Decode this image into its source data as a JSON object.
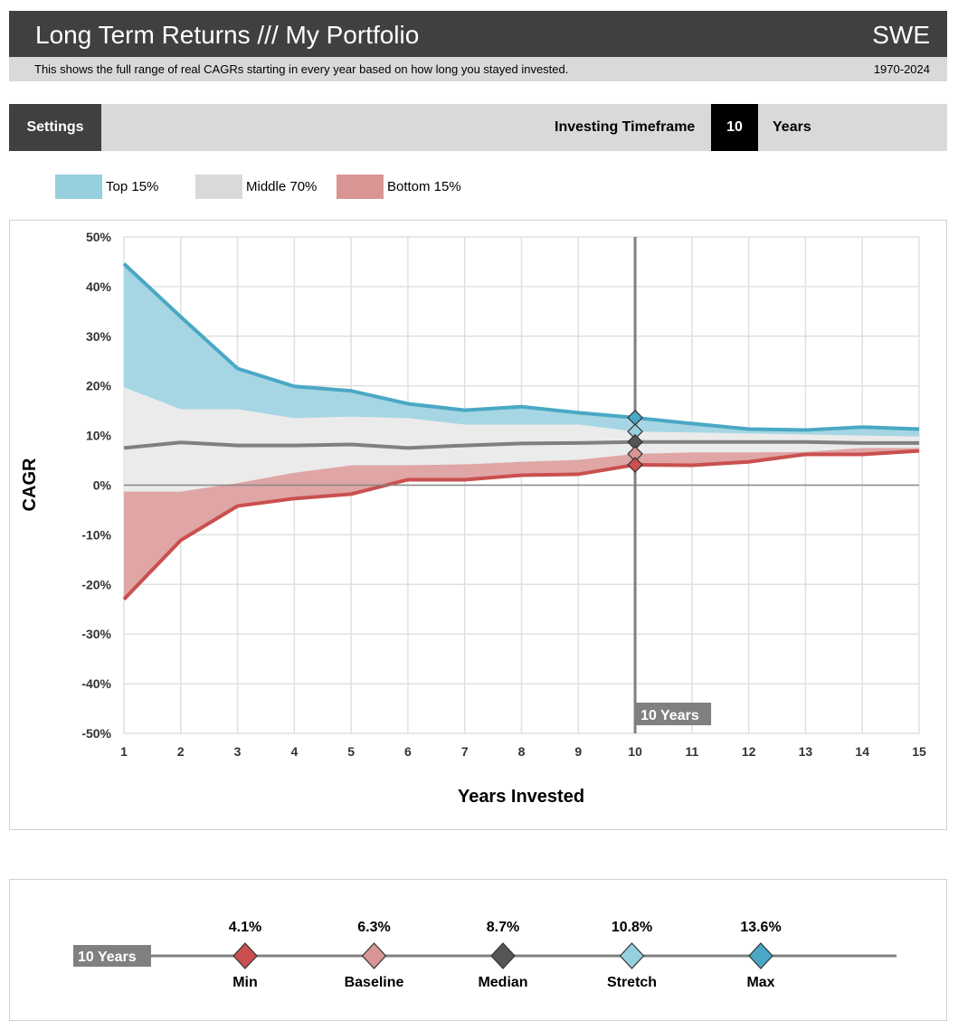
{
  "header": {
    "title": "Long Term Returns /// My Portfolio",
    "region": "SWE",
    "subtitle": "This shows the full range of real CAGRs starting in every year based on how long you stayed invested.",
    "date_range": "1970-2024"
  },
  "settings": {
    "button": "Settings",
    "timeframe_label": "Investing Timeframe",
    "timeframe_value": "10",
    "timeframe_unit": "Years"
  },
  "legend": [
    {
      "label": "Top 15%",
      "color": "#96cfdd"
    },
    {
      "label": "Middle 70%",
      "color": "#d9d9d9"
    },
    {
      "label": "Bottom 15%",
      "color": "#d99594"
    }
  ],
  "chart_data": {
    "type": "area",
    "xlabel": "Years Invested",
    "ylabel": "CAGR",
    "x": [
      1,
      2,
      3,
      4,
      5,
      6,
      7,
      8,
      9,
      10,
      11,
      12,
      13,
      14,
      15
    ],
    "ylim": [
      -50,
      50
    ],
    "yticks": [
      "50%",
      "40%",
      "30%",
      "20%",
      "10%",
      "0%",
      "-10%",
      "-20%",
      "-30%",
      "-40%",
      "-50%"
    ],
    "ytick_values": [
      50,
      40,
      30,
      20,
      10,
      0,
      -10,
      -20,
      -30,
      -40,
      -50
    ],
    "series": [
      {
        "name": "Max",
        "values": [
          44.6,
          33.9,
          23.5,
          19.9,
          19.0,
          16.4,
          15.1,
          15.8,
          14.6,
          13.6,
          12.4,
          11.3,
          11.1,
          11.7,
          11.3
        ],
        "color": "#4aa8c4"
      },
      {
        "name": "Stretch",
        "values": [
          19.7,
          15.3,
          15.3,
          13.5,
          13.8,
          13.5,
          12.2,
          12.2,
          12.2,
          10.8,
          10.6,
          10.4,
          10.2,
          10.0,
          9.8
        ],
        "color": "#96cfdd"
      },
      {
        "name": "Median",
        "values": [
          7.5,
          8.6,
          8.0,
          8.0,
          8.2,
          7.5,
          8.0,
          8.4,
          8.5,
          8.7,
          8.7,
          8.7,
          8.7,
          8.5,
          8.5
        ],
        "color": "#777777"
      },
      {
        "name": "Baseline",
        "values": [
          -1.3,
          -1.3,
          0.4,
          2.5,
          4.0,
          4.0,
          4.2,
          4.7,
          5.1,
          6.3,
          6.6,
          6.6,
          6.7,
          7.5,
          7.5
        ],
        "color": "#d99594"
      },
      {
        "name": "Min",
        "values": [
          -23.0,
          -11.1,
          -4.2,
          -2.7,
          -1.8,
          1.1,
          1.1,
          2.0,
          2.2,
          4.1,
          4.0,
          4.7,
          6.2,
          6.2,
          6.9
        ],
        "color": "#c9504f"
      }
    ],
    "selected_x": 10,
    "selected_label": "10 Years",
    "grid": true
  },
  "summary": {
    "label": "10 Years",
    "items": [
      {
        "name": "Min",
        "value": "4.1%",
        "color": "#c9504f"
      },
      {
        "name": "Baseline",
        "value": "6.3%",
        "color": "#d99594"
      },
      {
        "name": "Median",
        "value": "8.7%",
        "color": "#555555"
      },
      {
        "name": "Stretch",
        "value": "10.8%",
        "color": "#96cfdd"
      },
      {
        "name": "Max",
        "value": "13.6%",
        "color": "#4aa8c4"
      }
    ]
  }
}
